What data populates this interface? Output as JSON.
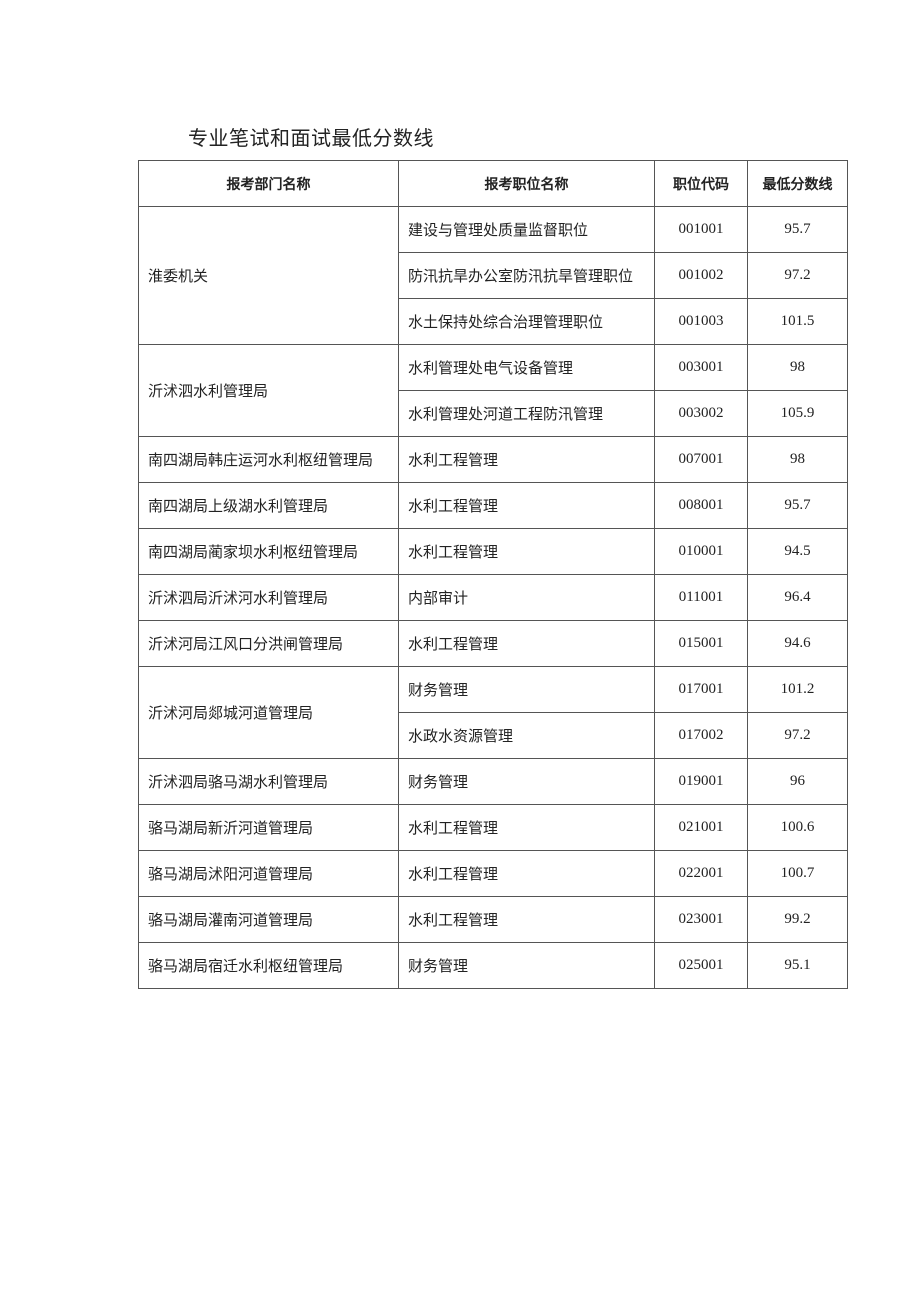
{
  "title": "专业笔试和面试最低分数线",
  "headers": [
    "报考部门名称",
    "报考职位名称",
    "职位代码",
    "最低分数线"
  ],
  "groups": [
    {
      "department": "淮委机关",
      "positions": [
        {
          "name": "建设与管理处质量监督职位",
          "code": "001001",
          "score": "95.7"
        },
        {
          "name": "防汛抗旱办公室防汛抗旱管理职位",
          "code": "001002",
          "score": "97.2"
        },
        {
          "name": "水土保持处综合治理管理职位",
          "code": "001003",
          "score": "101.5"
        }
      ]
    },
    {
      "department": "沂沭泗水利管理局",
      "positions": [
        {
          "name": "水利管理处电气设备管理",
          "code": "003001",
          "score": "98"
        },
        {
          "name": "水利管理处河道工程防汛管理",
          "code": "003002",
          "score": "105.9"
        }
      ]
    },
    {
      "department": "南四湖局韩庄运河水利枢纽管理局",
      "positions": [
        {
          "name": "水利工程管理",
          "code": "007001",
          "score": "98"
        }
      ]
    },
    {
      "department": "南四湖局上级湖水利管理局",
      "positions": [
        {
          "name": "水利工程管理",
          "code": "008001",
          "score": "95.7"
        }
      ]
    },
    {
      "department": "南四湖局蔺家坝水利枢纽管理局",
      "positions": [
        {
          "name": "水利工程管理",
          "code": "010001",
          "score": "94.5"
        }
      ]
    },
    {
      "department": "沂沭泗局沂沭河水利管理局",
      "positions": [
        {
          "name": "内部审计",
          "code": "011001",
          "score": "96.4"
        }
      ]
    },
    {
      "department": "沂沭河局江风口分洪闸管理局",
      "positions": [
        {
          "name": "水利工程管理",
          "code": "015001",
          "score": "94.6"
        }
      ]
    },
    {
      "department": "沂沭河局郯城河道管理局",
      "positions": [
        {
          "name": "财务管理",
          "code": "017001",
          "score": "101.2"
        },
        {
          "name": "水政水资源管理",
          "code": "017002",
          "score": "97.2"
        }
      ]
    },
    {
      "department": "沂沭泗局骆马湖水利管理局",
      "positions": [
        {
          "name": "财务管理",
          "code": "019001",
          "score": "96"
        }
      ]
    },
    {
      "department": "骆马湖局新沂河道管理局",
      "positions": [
        {
          "name": "水利工程管理",
          "code": "021001",
          "score": "100.6"
        }
      ]
    },
    {
      "department": "骆马湖局沭阳河道管理局",
      "positions": [
        {
          "name": "水利工程管理",
          "code": "022001",
          "score": "100.7"
        }
      ]
    },
    {
      "department": "骆马湖局灌南河道管理局",
      "positions": [
        {
          "name": "水利工程管理",
          "code": "023001",
          "score": "99.2"
        }
      ]
    },
    {
      "department": "骆马湖局宿迁水利枢纽管理局",
      "positions": [
        {
          "name": "财务管理",
          "code": "025001",
          "score": "95.1"
        }
      ]
    }
  ]
}
